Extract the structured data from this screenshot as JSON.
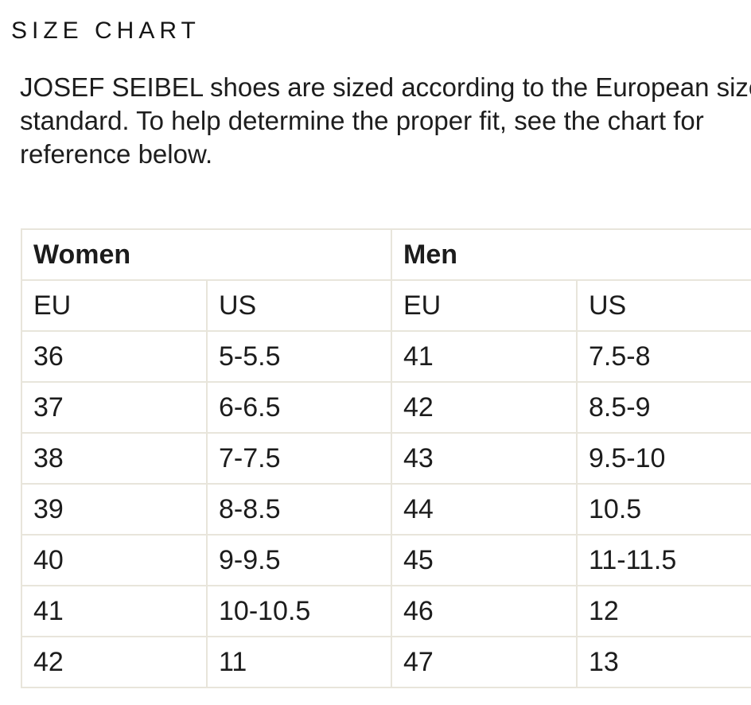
{
  "title": "SIZE CHART",
  "intro": {
    "full_text": "JOSEF SEIBEL shoes are sized according to the European size standard. To help determine the proper fit, see the chart for reference below.",
    "lines": [
      "JOSEF SEIBEL shoes are sized according to the European size",
      "standard. To help determine the proper fit, see the chart for",
      "reference below."
    ]
  },
  "table": {
    "groups": [
      {
        "label": "Women"
      },
      {
        "label": "Men"
      }
    ],
    "columns": [
      "EU",
      "US",
      "EU",
      "US"
    ],
    "rows": [
      [
        "36",
        "5-5.5",
        "41",
        "7.5-8"
      ],
      [
        "37",
        "6-6.5",
        "42",
        "8.5-9"
      ],
      [
        "38",
        "7-7.5",
        "43",
        "9.5-10"
      ],
      [
        "39",
        "8-8.5",
        "44",
        "10.5"
      ],
      [
        "40",
        "9-9.5",
        "45",
        "11-11.5"
      ],
      [
        "41",
        "10-10.5",
        "46",
        "12"
      ],
      [
        "42",
        "11",
        "47",
        "13"
      ]
    ]
  },
  "colors": {
    "background": "#ffffff",
    "text": "#1c1c1c",
    "table_border": "#e8e5db"
  }
}
